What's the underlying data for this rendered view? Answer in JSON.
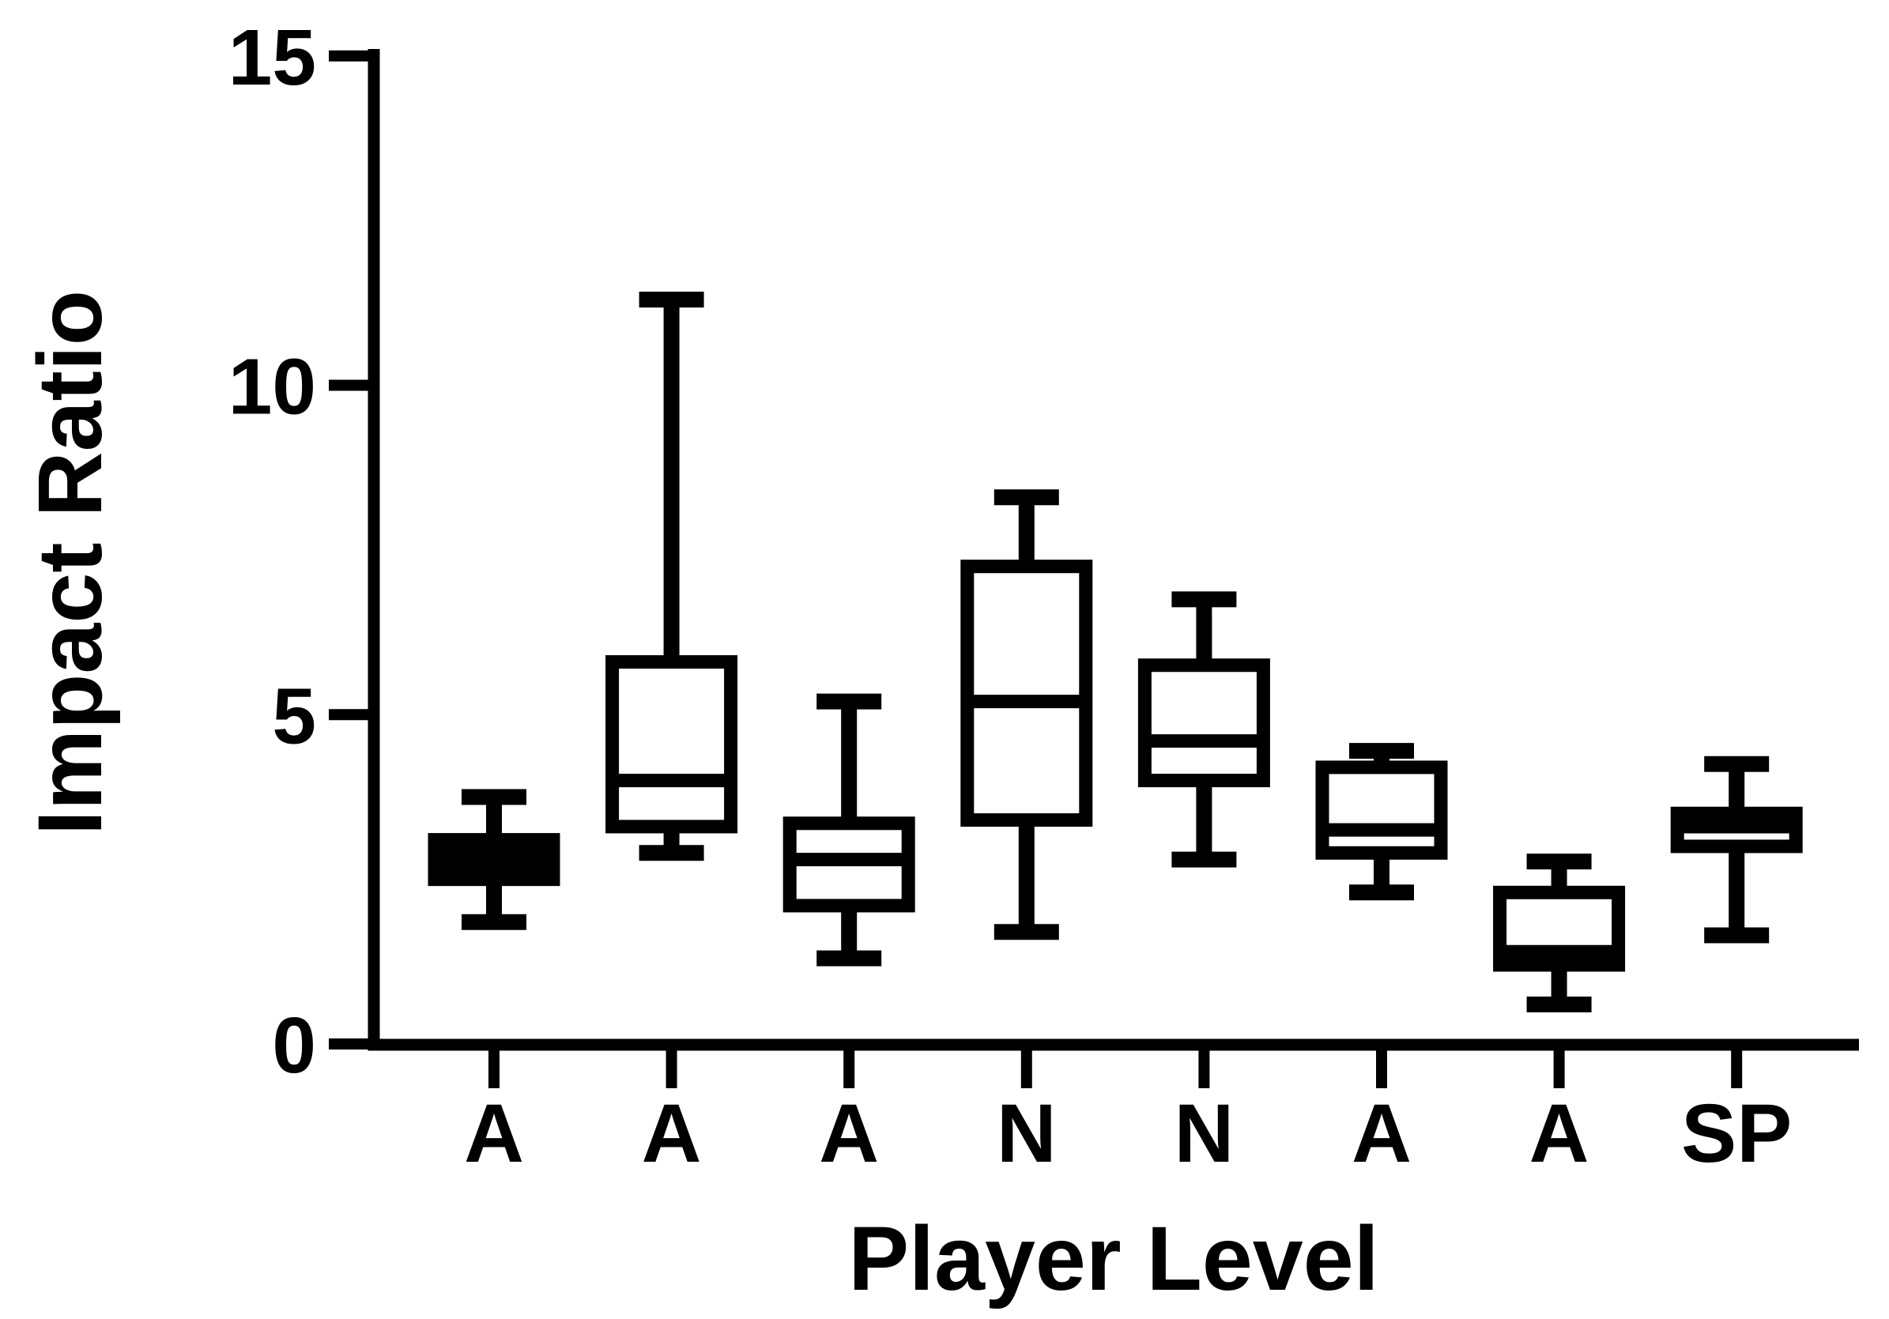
{
  "figure": {
    "background_color": "#ffffff",
    "ink_color": "#000000"
  },
  "chart_data": {
    "type": "box",
    "title": "",
    "xlabel": "Player Level",
    "ylabel": "Impact Ratio",
    "ylim": [
      0,
      15
    ],
    "yticks": [
      0,
      5,
      10,
      15
    ],
    "grid": "off",
    "legend": "none",
    "categories": [
      "A",
      "A",
      "A",
      "N",
      "N",
      "A",
      "A",
      "SP"
    ],
    "boxes": [
      {
        "category": "A",
        "whisker_low": 1.85,
        "q1": 2.5,
        "median": 2.8,
        "q3": 3.1,
        "whisker_high": 3.75,
        "filled": true
      },
      {
        "category": "A",
        "whisker_low": 2.9,
        "q1": 3.3,
        "median": 4.0,
        "q3": 5.8,
        "whisker_high": 11.3,
        "filled": false
      },
      {
        "category": "A",
        "whisker_low": 1.3,
        "q1": 2.1,
        "median": 2.8,
        "q3": 3.35,
        "whisker_high": 5.2,
        "filled": false
      },
      {
        "category": "N",
        "whisker_low": 1.7,
        "q1": 3.4,
        "median": 5.2,
        "q3": 7.25,
        "whisker_high": 8.3,
        "filled": false
      },
      {
        "category": "N",
        "whisker_low": 2.8,
        "q1": 4.0,
        "median": 4.6,
        "q3": 5.75,
        "whisker_high": 6.75,
        "filled": false
      },
      {
        "category": "A",
        "whisker_low": 2.3,
        "q1": 2.9,
        "median": 3.25,
        "q3": 4.2,
        "whisker_high": 4.45,
        "filled": false
      },
      {
        "category": "A",
        "whisker_low": 0.6,
        "q1": 1.2,
        "median": 1.4,
        "q3": 2.3,
        "whisker_high": 2.77,
        "filled": false
      },
      {
        "category": "SP",
        "whisker_low": 1.65,
        "q1": 3.0,
        "median": 3.3,
        "q3": 3.5,
        "whisker_high": 4.25,
        "filled": false
      }
    ]
  }
}
